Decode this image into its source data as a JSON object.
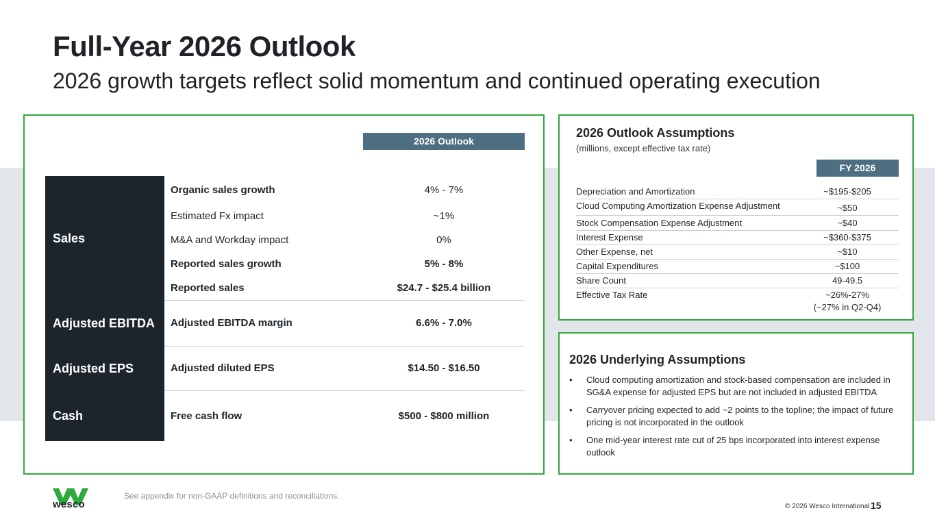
{
  "header": {
    "title": "Full-Year 2026 Outlook",
    "subtitle": "2026 growth targets reflect solid momentum and continued operating execution"
  },
  "outlook": {
    "column_header": "2026  Outlook",
    "categories": [
      "Sales",
      "Adjusted EBITDA",
      "Adjusted EPS",
      "Cash"
    ],
    "rows": [
      {
        "label": "Organic sales growth",
        "value": "4% - 7%"
      },
      {
        "label": "Estimated Fx impact",
        "value": "~1%"
      },
      {
        "label": "M&A and Workday impact",
        "value": "0%"
      },
      {
        "label": "Reported sales growth",
        "value": "5% - 8%"
      },
      {
        "label": "Reported sales",
        "value": "$24.7 - $25.4 billion"
      },
      {
        "label": "Adjusted EBITDA margin",
        "value": "6.6% - 7.0%"
      },
      {
        "label": "Adjusted diluted EPS",
        "value": "$14.50 - $16.50"
      },
      {
        "label": "Free cash flow",
        "value": "$500 - $800 million"
      }
    ]
  },
  "assumptions": {
    "title": "2026 Outlook Assumptions",
    "subtitle": "(millions, except effective tax rate)",
    "column_header": "FY 2026",
    "rows": [
      {
        "label": "Depreciation and Amortization",
        "value": "~$195-$205"
      },
      {
        "label": "Cloud Computing Amortization Expense Adjustment",
        "value": "~$50"
      },
      {
        "label": "Stock Compensation Expense Adjustment",
        "value": "~$40"
      },
      {
        "label": "Interest Expense",
        "value": "~$360-$375"
      },
      {
        "label": "Other Expense, net",
        "value": "~$10"
      },
      {
        "label": "Capital Expenditures",
        "value": "~$100"
      },
      {
        "label": "Share Count",
        "value": "49-49.5"
      },
      {
        "label": "Effective Tax Rate",
        "value": "~26%-27%",
        "value_note": "(~27% in Q2-Q4)"
      }
    ]
  },
  "underlying": {
    "title": "2026 Underlying Assumptions",
    "bullet_char": "•",
    "items": [
      "Cloud computing amortization and stock-based compensation are included in SG&A expense for adjusted EPS but are not included in adjusted EBITDA",
      "Carryover pricing expected to add ~2 points to the topline; the impact of future pricing is not incorporated in the outlook",
      "One mid-year interest rate cut of 25 bps incorporated into interest expense outlook"
    ]
  },
  "footer": {
    "logo_text": "wesco",
    "footnote": "See appendix for non-GAAP definitions and reconciliations.",
    "copyright": "© 2026 Wesco International",
    "page_number": "15"
  },
  "colors": {
    "accent_green": "#2fa83c",
    "header_slate": "#4e6f82",
    "dark_navy": "#1d252c",
    "band_gray": "#e2e6ea"
  }
}
